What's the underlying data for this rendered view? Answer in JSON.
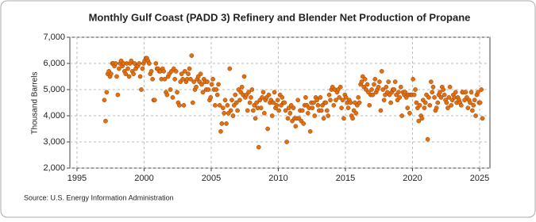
{
  "chart_data": {
    "type": "scatter",
    "title": "Monthly Gulf Coast (PADD 3) Refinery and Blender Net Production of Propane",
    "y_label": "Thousand Barrels",
    "source": "Source: U.S. Energy Information Administration",
    "xlim": [
      1994.47,
      2025.77
    ],
    "xticks": [
      1995,
      2000,
      2005,
      2010,
      2015,
      2020,
      2025
    ],
    "ylim": [
      2000,
      7000
    ],
    "yticks": [
      {
        "value": 2000,
        "label": "2,000"
      },
      {
        "value": 3000,
        "label": "3,000"
      },
      {
        "value": 4000,
        "label": "4,000"
      },
      {
        "value": 5000,
        "label": "5,000"
      },
      {
        "value": 6000,
        "label": "6,000"
      },
      {
        "value": 7000,
        "label": "7,000"
      }
    ],
    "grid": true,
    "color": "#e07010",
    "x": [
      1997.04,
      1997.13,
      1997.21,
      1997.29,
      1997.38,
      1997.46,
      1997.54,
      1997.63,
      1997.71,
      1997.79,
      1997.88,
      1997.96,
      1998.04,
      1998.13,
      1998.21,
      1998.29,
      1998.38,
      1998.46,
      1998.54,
      1998.63,
      1998.71,
      1998.79,
      1998.88,
      1998.96,
      1999.04,
      1999.13,
      1999.21,
      1999.29,
      1999.38,
      1999.46,
      1999.54,
      1999.63,
      1999.71,
      1999.79,
      1999.88,
      1999.96,
      2000.04,
      2000.13,
      2000.21,
      2000.29,
      2000.38,
      2000.46,
      2000.54,
      2000.63,
      2000.71,
      2000.79,
      2000.88,
      2000.96,
      2001.04,
      2001.13,
      2001.21,
      2001.29,
      2001.38,
      2001.46,
      2001.54,
      2001.63,
      2001.71,
      2001.79,
      2001.88,
      2001.96,
      2002.04,
      2002.13,
      2002.21,
      2002.29,
      2002.38,
      2002.46,
      2002.54,
      2002.63,
      2002.71,
      2002.79,
      2002.88,
      2002.96,
      2003.04,
      2003.13,
      2003.21,
      2003.29,
      2003.38,
      2003.46,
      2003.54,
      2003.63,
      2003.71,
      2003.79,
      2003.88,
      2003.96,
      2004.04,
      2004.13,
      2004.21,
      2004.29,
      2004.38,
      2004.46,
      2004.54,
      2004.63,
      2004.71,
      2004.79,
      2004.88,
      2004.96,
      2005.04,
      2005.13,
      2005.21,
      2005.29,
      2005.38,
      2005.46,
      2005.54,
      2005.63,
      2005.71,
      2005.79,
      2005.88,
      2005.96,
      2006.04,
      2006.13,
      2006.21,
      2006.29,
      2006.38,
      2006.46,
      2006.54,
      2006.63,
      2006.71,
      2006.79,
      2006.88,
      2006.96,
      2007.04,
      2007.13,
      2007.21,
      2007.29,
      2007.38,
      2007.46,
      2007.54,
      2007.63,
      2007.71,
      2007.79,
      2007.88,
      2007.96,
      2008.04,
      2008.13,
      2008.21,
      2008.29,
      2008.38,
      2008.46,
      2008.54,
      2008.63,
      2008.71,
      2008.79,
      2008.88,
      2008.96,
      2009.04,
      2009.13,
      2009.21,
      2009.29,
      2009.38,
      2009.46,
      2009.54,
      2009.63,
      2009.71,
      2009.79,
      2009.88,
      2009.96,
      2010.04,
      2010.13,
      2010.21,
      2010.29,
      2010.38,
      2010.46,
      2010.54,
      2010.63,
      2010.71,
      2010.79,
      2010.88,
      2010.96,
      2011.04,
      2011.13,
      2011.21,
      2011.29,
      2011.38,
      2011.46,
      2011.54,
      2011.63,
      2011.71,
      2011.79,
      2011.88,
      2011.96,
      2012.04,
      2012.13,
      2012.21,
      2012.29,
      2012.38,
      2012.46,
      2012.54,
      2012.63,
      2012.71,
      2012.79,
      2012.88,
      2012.96,
      2013.04,
      2013.13,
      2013.21,
      2013.29,
      2013.38,
      2013.46,
      2013.54,
      2013.63,
      2013.71,
      2013.79,
      2013.88,
      2013.96,
      2014.04,
      2014.13,
      2014.21,
      2014.29,
      2014.38,
      2014.46,
      2014.54,
      2014.63,
      2014.71,
      2014.79,
      2014.88,
      2014.96,
      2015.04,
      2015.13,
      2015.21,
      2015.29,
      2015.38,
      2015.46,
      2015.54,
      2015.63,
      2015.71,
      2015.79,
      2015.88,
      2015.96,
      2016.04,
      2016.13,
      2016.21,
      2016.29,
      2016.38,
      2016.46,
      2016.54,
      2016.63,
      2016.71,
      2016.79,
      2016.88,
      2016.96,
      2017.04,
      2017.13,
      2017.21,
      2017.29,
      2017.38,
      2017.46,
      2017.54,
      2017.63,
      2017.71,
      2017.79,
      2017.88,
      2017.96,
      2018.04,
      2018.13,
      2018.21,
      2018.29,
      2018.38,
      2018.46,
      2018.54,
      2018.63,
      2018.71,
      2018.79,
      2018.88,
      2018.96,
      2019.04,
      2019.13,
      2019.21,
      2019.29,
      2019.38,
      2019.46,
      2019.54,
      2019.63,
      2019.71,
      2019.79,
      2019.88,
      2019.96,
      2020.04,
      2020.13,
      2020.21,
      2020.29,
      2020.38,
      2020.46,
      2020.54,
      2020.63,
      2020.71,
      2020.79,
      2020.88,
      2020.96,
      2021.04,
      2021.13,
      2021.21,
      2021.29,
      2021.38,
      2021.46,
      2021.54,
      2021.63,
      2021.71,
      2021.79,
      2021.88,
      2021.96,
      2022.04,
      2022.13,
      2022.21,
      2022.29,
      2022.38,
      2022.46,
      2022.54,
      2022.63,
      2022.71,
      2022.79,
      2022.88,
      2022.96,
      2023.04,
      2023.13,
      2023.21,
      2023.29,
      2023.38,
      2023.46,
      2023.54,
      2023.63,
      2023.71,
      2023.79,
      2023.88,
      2023.96,
      2024.04,
      2024.13,
      2024.21,
      2024.29,
      2024.38,
      2024.46,
      2024.54,
      2024.63,
      2024.71,
      2024.79,
      2024.88,
      2024.96,
      2025.04,
      2025.13,
      2025.21
    ],
    "values": [
      4600,
      3800,
      4900,
      5600,
      5700,
      5500,
      5600,
      6000,
      6000,
      5900,
      6000,
      5500,
      4800,
      5800,
      6000,
      6100,
      5900,
      6000,
      5700,
      5600,
      6000,
      5800,
      5500,
      6000,
      6100,
      5700,
      5600,
      6000,
      5800,
      5900,
      5900,
      6000,
      5500,
      5000,
      5800,
      6000,
      6100,
      6200,
      6200,
      6100,
      6000,
      5600,
      5700,
      5400,
      4600,
      4600,
      6000,
      5800,
      5800,
      5700,
      5700,
      5400,
      5800,
      5700,
      5400,
      4900,
      4800,
      5500,
      5600,
      5000,
      5700,
      4700,
      5800,
      5400,
      5700,
      4900,
      4500,
      4400,
      5300,
      5600,
      5400,
      4400,
      5700,
      5300,
      5400,
      5600,
      5800,
      5400,
      6300,
      4500,
      5300,
      5000,
      5100,
      5400,
      5500,
      5300,
      5600,
      5200,
      4900,
      5400,
      5300,
      5000,
      5300,
      5000,
      4600,
      4700,
      5200,
      5400,
      5000,
      4400,
      5000,
      4800,
      5200,
      4400,
      3400,
      3700,
      4300,
      4100,
      4600,
      3700,
      4400,
      4100,
      5800,
      4200,
      4600,
      4000,
      4400,
      4800,
      4500,
      4200,
      5000,
      4600,
      4900,
      5100,
      4800,
      5500,
      4700,
      4800,
      4200,
      4900,
      4500,
      4700,
      5000,
      4200,
      4400,
      3900,
      4500,
      4300,
      2800,
      4600,
      4300,
      4700,
      4900,
      4100,
      4600,
      4700,
      3500,
      4800,
      4500,
      4600,
      4000,
      4500,
      4900,
      4300,
      4400,
      4600,
      4200,
      4800,
      4400,
      4700,
      4500,
      4500,
      4200,
      3000,
      3900,
      4300,
      4100,
      4400,
      3800,
      4300,
      3900,
      3600,
      3900,
      4600,
      3900,
      4200,
      3800,
      4200,
      3700,
      4400,
      4700,
      4400,
      4100,
      4300,
      3400,
      4500,
      4300,
      4500,
      4000,
      4700,
      4600,
      4400,
      4200,
      4700,
      4200,
      4400,
      3900,
      4500,
      4500,
      4200,
      4000,
      4800,
      4600,
      5000,
      5100,
      4400,
      5000,
      4600,
      4900,
      5000,
      4700,
      5100,
      4300,
      4600,
      3900,
      4800,
      4700,
      4500,
      4300,
      4600,
      4500,
      4000,
      3900,
      4200,
      4500,
      4100,
      4400,
      4700,
      4500,
      5200,
      5300,
      5500,
      5100,
      5400,
      5000,
      5200,
      4900,
      4400,
      4800,
      5000,
      4800,
      5200,
      5400,
      4900,
      5000,
      5100,
      5300,
      4200,
      5700,
      5000,
      4600,
      4800,
      5100,
      4900,
      5300,
      4800,
      4500,
      4900,
      5000,
      5000,
      5300,
      4800,
      4600,
      4900,
      4700,
      5100,
      4000,
      4900,
      4800,
      4900,
      4700,
      4300,
      4800,
      4100,
      4800,
      4800,
      5400,
      4800,
      5000,
      4500,
      4300,
      3800,
      4400,
      4000,
      3900,
      4600,
      4300,
      4500,
      4800,
      3100,
      4700,
      4400,
      5300,
      4900,
      5100,
      4700,
      4200,
      4300,
      4500,
      4800,
      4900,
      4700,
      5100,
      5000,
      4800,
      4600,
      4500,
      4300,
      4700,
      5100,
      4400,
      4600,
      4800,
      4700,
      4900,
      4500,
      4700,
      4600,
      4500,
      4400,
      4900,
      4900,
      4600,
      4900,
      4700,
      4300,
      4600,
      4500,
      4900,
      4200,
      4400,
      4600,
      4000,
      4800,
      4900,
      4500,
      4500,
      5000,
      3900
    ]
  }
}
